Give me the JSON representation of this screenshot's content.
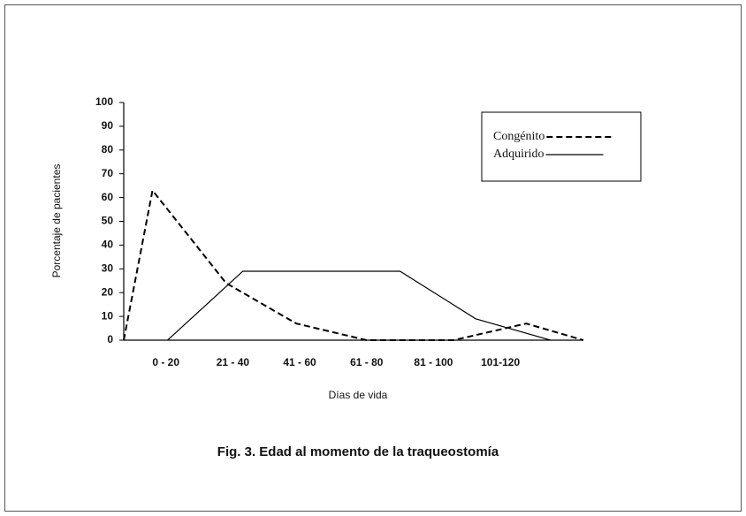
{
  "chart_data": {
    "type": "line",
    "title": "Fig. 3. Edad al momento de la traqueostomía",
    "xlabel": "Días de vida",
    "ylabel": "Porcentaje de pacientes",
    "xlim": [
      -2.6,
      134.8
    ],
    "xticks": [
      {
        "value": 10,
        "label": "0 - 20"
      },
      {
        "value": 30,
        "label": "21 - 40"
      },
      {
        "value": 50,
        "label": "41 - 60"
      },
      {
        "value": 70,
        "label": "61 - 80"
      },
      {
        "value": 90,
        "label": "81 - 100"
      },
      {
        "value": 110,
        "label": "101-120"
      }
    ],
    "ylim": [
      0,
      100
    ],
    "yticks": [
      0,
      10,
      20,
      30,
      40,
      50,
      60,
      70,
      80,
      90,
      100
    ],
    "legend": "upper right",
    "series": [
      {
        "name": "Congénito",
        "color": "#000000",
        "style": "dashed",
        "x": [
          -2.6,
          6,
          28,
          49,
          70,
          96,
          117.7,
          134.8
        ],
        "values": [
          0,
          63,
          24,
          7,
          0,
          0,
          7,
          0
        ]
      },
      {
        "name": "Adquirido",
        "color": "#000000",
        "style": "solid",
        "x": [
          10.5,
          33,
          80,
          102.6,
          125
        ],
        "values": [
          0,
          29,
          29,
          9,
          0
        ]
      }
    ]
  }
}
